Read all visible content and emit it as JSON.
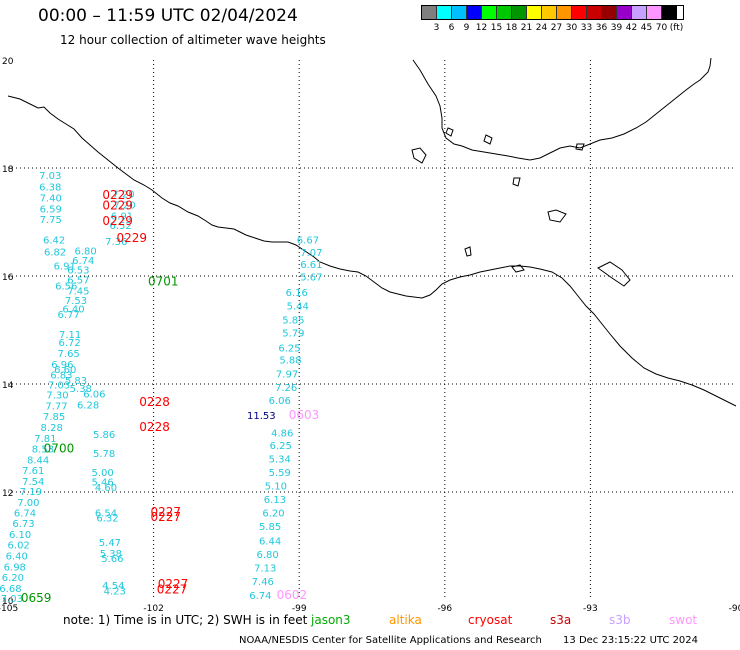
{
  "header": {
    "title": "00:00 – 11:59 UTC 02/04/2024",
    "subtitle": "12 hour collection of altimeter wave heights"
  },
  "legend": {
    "colors": [
      "#7f7f7f",
      "#00ffff",
      "#00bfff",
      "#0000ff",
      "#00ff00",
      "#00c800",
      "#009600",
      "#ffff00",
      "#ffc800",
      "#ff9600",
      "#ff0000",
      "#c80000",
      "#960000",
      "#9600c8",
      "#c8a0ff",
      "#ff96ff",
      "#000000"
    ],
    "labels": [
      "3",
      "6",
      "9",
      "12",
      "15",
      "18",
      "21",
      "24",
      "27",
      "30",
      "33",
      "36",
      "39",
      "42",
      "45",
      "70",
      "(ft)"
    ]
  },
  "map": {
    "lat_labels": [
      "20",
      "18",
      "16",
      "14",
      "12",
      "10"
    ],
    "lon_labels": [
      "-105",
      "-102",
      "-99",
      "-96",
      "-93",
      "-90"
    ],
    "points": [
      {
        "t": "7.03",
        "c": "cyan",
        "lon": -104.13,
        "lat": 17.8
      },
      {
        "t": "6.38",
        "c": "cyan",
        "lon": -104.13,
        "lat": 17.58
      },
      {
        "t": "7.40",
        "c": "cyan",
        "lon": -104.12,
        "lat": 17.38
      },
      {
        "t": "6.59",
        "c": "cyan",
        "lon": -104.12,
        "lat": 17.18
      },
      {
        "t": "7.75",
        "c": "cyan",
        "lon": -104.12,
        "lat": 16.98
      },
      {
        "t": "6.42",
        "c": "cyan",
        "lon": -104.05,
        "lat": 16.6
      },
      {
        "t": "6.82",
        "c": "cyan",
        "lon": -104.03,
        "lat": 16.38
      },
      {
        "t": "6.91",
        "c": "cyan",
        "lon": -103.83,
        "lat": 16.12
      },
      {
        "t": "6.56",
        "c": "cyan",
        "lon": -103.8,
        "lat": 15.75
      },
      {
        "t": "6.77",
        "c": "cyan",
        "lon": -103.75,
        "lat": 15.22
      },
      {
        "t": "7.11",
        "c": "cyan",
        "lon": -103.72,
        "lat": 14.85
      },
      {
        "t": "6.72",
        "c": "cyan",
        "lon": -103.73,
        "lat": 14.7
      },
      {
        "t": "7.65",
        "c": "cyan",
        "lon": -103.75,
        "lat": 14.5
      },
      {
        "t": "6.96",
        "c": "cyan",
        "lon": -103.88,
        "lat": 14.3
      },
      {
        "t": "6.83",
        "c": "cyan",
        "lon": -103.9,
        "lat": 14.1
      },
      {
        "t": "7.03",
        "c": "cyan",
        "lon": -103.95,
        "lat": 13.92
      },
      {
        "t": "7.30",
        "c": "cyan",
        "lon": -103.98,
        "lat": 13.73
      },
      {
        "t": "7.77",
        "c": "cyan",
        "lon": -104.0,
        "lat": 13.53
      },
      {
        "t": "7.85",
        "c": "cyan",
        "lon": -104.05,
        "lat": 13.33
      },
      {
        "t": "8.28",
        "c": "cyan",
        "lon": -104.1,
        "lat": 13.13
      },
      {
        "t": "7.81",
        "c": "cyan",
        "lon": -104.23,
        "lat": 12.93
      },
      {
        "t": "8.53",
        "c": "cyan",
        "lon": -104.28,
        "lat": 12.73
      },
      {
        "t": "8.44",
        "c": "cyan",
        "lon": -104.38,
        "lat": 12.53
      },
      {
        "t": "7.61",
        "c": "cyan",
        "lon": -104.48,
        "lat": 12.33
      },
      {
        "t": "7.54",
        "c": "cyan",
        "lon": -104.48,
        "lat": 12.13
      },
      {
        "t": "7.19",
        "c": "cyan",
        "lon": -104.53,
        "lat": 11.94
      },
      {
        "t": "7.00",
        "c": "cyan",
        "lon": -104.58,
        "lat": 11.74
      },
      {
        "t": "6.74",
        "c": "cyan",
        "lon": -104.65,
        "lat": 11.55
      },
      {
        "t": "6.73",
        "c": "cyan",
        "lon": -104.68,
        "lat": 11.35
      },
      {
        "t": "6.10",
        "c": "cyan",
        "lon": -104.75,
        "lat": 11.15
      },
      {
        "t": "6.02",
        "c": "cyan",
        "lon": -104.78,
        "lat": 10.95
      },
      {
        "t": "6.40",
        "c": "cyan",
        "lon": -104.82,
        "lat": 10.75
      },
      {
        "t": "6.98",
        "c": "cyan",
        "lon": -104.86,
        "lat": 10.55
      },
      {
        "t": "6.20",
        "c": "cyan",
        "lon": -104.9,
        "lat": 10.35
      },
      {
        "t": "6.68",
        "c": "cyan",
        "lon": -104.95,
        "lat": 10.15
      },
      {
        "t": "7.03",
        "c": "cyan",
        "lon": -104.92,
        "lat": 9.96
      },
      {
        "t": "6.80",
        "c": "cyan",
        "lon": -103.4,
        "lat": 16.4
      },
      {
        "t": "6.74",
        "c": "cyan",
        "lon": -103.45,
        "lat": 16.22
      },
      {
        "t": "6.53",
        "c": "cyan",
        "lon": -103.55,
        "lat": 16.05
      },
      {
        "t": "6.57",
        "c": "cyan",
        "lon": -103.55,
        "lat": 15.86
      },
      {
        "t": "7.45",
        "c": "cyan",
        "lon": -103.55,
        "lat": 15.66
      },
      {
        "t": "7.53",
        "c": "cyan",
        "lon": -103.6,
        "lat": 15.48
      },
      {
        "t": "6.40",
        "c": "cyan",
        "lon": -103.65,
        "lat": 15.32
      },
      {
        "t": "6.06",
        "c": "cyan",
        "lon": -103.22,
        "lat": 13.75
      },
      {
        "t": "6.28",
        "c": "cyan",
        "lon": -103.35,
        "lat": 13.55
      },
      {
        "t": "5.86",
        "c": "cyan",
        "lon": -103.02,
        "lat": 13.0
      },
      {
        "t": "5.78",
        "c": "cyan",
        "lon": -103.02,
        "lat": 12.65
      },
      {
        "t": "5.00",
        "c": "cyan",
        "lon": -103.05,
        "lat": 12.3
      },
      {
        "t": "5.46",
        "c": "cyan",
        "lon": -103.05,
        "lat": 12.12
      },
      {
        "t": "4.60",
        "c": "cyan",
        "lon": -102.98,
        "lat": 12.02
      },
      {
        "t": "6.54",
        "c": "cyan",
        "lon": -102.98,
        "lat": 11.55
      },
      {
        "t": "6.32",
        "c": "cyan",
        "lon": -102.95,
        "lat": 11.45
      },
      {
        "t": "5.47",
        "c": "cyan",
        "lon": -102.9,
        "lat": 11.0
      },
      {
        "t": "5.38",
        "c": "cyan",
        "lon": -102.88,
        "lat": 10.8
      },
      {
        "t": "5.66",
        "c": "cyan",
        "lon": -102.85,
        "lat": 10.7
      },
      {
        "t": "4.54",
        "c": "cyan",
        "lon": -102.83,
        "lat": 10.2
      },
      {
        "t": "4.23",
        "c": "cyan",
        "lon": -102.8,
        "lat": 10.1
      },
      {
        "t": "6.60",
        "c": "cyan",
        "lon": -103.82,
        "lat": 14.2
      },
      {
        "t": "5.83",
        "c": "cyan",
        "lon": -103.6,
        "lat": 14.0
      },
      {
        "t": "5.38",
        "c": "cyan",
        "lon": -103.5,
        "lat": 13.85
      },
      {
        "t": "7.20",
        "c": "cyan",
        "lon": -102.62,
        "lat": 17.45
      },
      {
        "t": "7.20",
        "c": "cyan",
        "lon": -102.6,
        "lat": 17.25
      },
      {
        "t": "6.91",
        "c": "cyan",
        "lon": -102.65,
        "lat": 17.05
      },
      {
        "t": "6.52",
        "c": "cyan",
        "lon": -102.68,
        "lat": 16.87
      },
      {
        "t": "7.36",
        "c": "cyan",
        "lon": -102.77,
        "lat": 16.57
      },
      {
        "t": "6.67",
        "c": "cyan",
        "lon": -98.82,
        "lat": 16.6
      },
      {
        "t": "7.07",
        "c": "cyan",
        "lon": -98.75,
        "lat": 16.37
      },
      {
        "t": "6.61",
        "c": "cyan",
        "lon": -98.75,
        "lat": 16.15
      },
      {
        "t": "5.67",
        "c": "cyan",
        "lon": -98.75,
        "lat": 15.92
      },
      {
        "t": "6.16",
        "c": "cyan",
        "lon": -99.05,
        "lat": 15.63
      },
      {
        "t": "5.44",
        "c": "cyan",
        "lon": -99.03,
        "lat": 15.38
      },
      {
        "t": "5.85",
        "c": "cyan",
        "lon": -99.12,
        "lat": 15.12
      },
      {
        "t": "5.79",
        "c": "cyan",
        "lon": -99.12,
        "lat": 14.88
      },
      {
        "t": "6.25",
        "c": "cyan",
        "lon": -99.2,
        "lat": 14.6
      },
      {
        "t": "5.88",
        "c": "cyan",
        "lon": -99.18,
        "lat": 14.38
      },
      {
        "t": "7.97",
        "c": "cyan",
        "lon": -99.25,
        "lat": 14.12
      },
      {
        "t": "7.26",
        "c": "cyan",
        "lon": -99.27,
        "lat": 13.87
      },
      {
        "t": "6.06",
        "c": "cyan",
        "lon": -99.4,
        "lat": 13.63
      },
      {
        "t": "4.86",
        "c": "cyan",
        "lon": -99.35,
        "lat": 13.03
      },
      {
        "t": "6.25",
        "c": "cyan",
        "lon": -99.38,
        "lat": 12.8
      },
      {
        "t": "5.34",
        "c": "cyan",
        "lon": -99.4,
        "lat": 12.55
      },
      {
        "t": "5.59",
        "c": "cyan",
        "lon": -99.4,
        "lat": 12.3
      },
      {
        "t": "5.10",
        "c": "cyan",
        "lon": -99.48,
        "lat": 12.05
      },
      {
        "t": "6.13",
        "c": "cyan",
        "lon": -99.5,
        "lat": 11.8
      },
      {
        "t": "6.20",
        "c": "cyan",
        "lon": -99.53,
        "lat": 11.55
      },
      {
        "t": "5.85",
        "c": "cyan",
        "lon": -99.6,
        "lat": 11.3
      },
      {
        "t": "6.44",
        "c": "cyan",
        "lon": -99.6,
        "lat": 11.03
      },
      {
        "t": "6.80",
        "c": "cyan",
        "lon": -99.65,
        "lat": 10.78
      },
      {
        "t": "7.13",
        "c": "cyan",
        "lon": -99.7,
        "lat": 10.53
      },
      {
        "t": "7.46",
        "c": "cyan",
        "lon": -99.75,
        "lat": 10.28
      },
      {
        "t": "6.74",
        "c": "cyan",
        "lon": -99.8,
        "lat": 10.02
      },
      {
        "t": "11.53",
        "c": "navy",
        "lon": -99.78,
        "lat": 13.35
      },
      {
        "t": "0603",
        "c": "pink",
        "lon": -98.9,
        "lat": 13.35
      },
      {
        "t": "0602",
        "c": "pink",
        "lon": -99.15,
        "lat": 10.02
      },
      {
        "t": "0229",
        "c": "red",
        "lon": -102.74,
        "lat": 17.43
      },
      {
        "t": "0229",
        "c": "red",
        "lon": -102.74,
        "lat": 17.23
      },
      {
        "t": "0229",
        "c": "red",
        "lon": -102.74,
        "lat": 16.94
      },
      {
        "t": "0229",
        "c": "red",
        "lon": -102.45,
        "lat": 16.63
      },
      {
        "t": "0228",
        "c": "red",
        "lon": -101.98,
        "lat": 13.59
      },
      {
        "t": "0228",
        "c": "red",
        "lon": -101.98,
        "lat": 13.13
      },
      {
        "t": "0227",
        "c": "red",
        "lon": -101.75,
        "lat": 11.56
      },
      {
        "t": "0227",
        "c": "red",
        "lon": -101.75,
        "lat": 11.46
      },
      {
        "t": "0227",
        "c": "red",
        "lon": -101.6,
        "lat": 10.22
      },
      {
        "t": "0227",
        "c": "red",
        "lon": -101.62,
        "lat": 10.12
      },
      {
        "t": "0701",
        "c": "green",
        "lon": -101.8,
        "lat": 15.82
      },
      {
        "t": "0700",
        "c": "green",
        "lon": -103.95,
        "lat": 12.73
      },
      {
        "t": "0659",
        "c": "green",
        "lon": -104.42,
        "lat": 9.96
      }
    ]
  },
  "notes": {
    "text": "note:  1) Time is in UTC;  2) SWH is in feet",
    "missions": [
      {
        "name": "jason3",
        "color": "#00aa00"
      },
      {
        "name": "altika",
        "color": "#ff9600"
      },
      {
        "name": "cryosat",
        "color": "#ff0000"
      },
      {
        "name": "s3a",
        "color": "#c80000"
      },
      {
        "name": "s3b",
        "color": "#c8a0ff"
      },
      {
        "name": "swot",
        "color": "#ff96ff"
      }
    ]
  },
  "footer": {
    "credit": "NOAA/NESDIS Center for Satellite Applications and Research",
    "timestamp": "13 Dec 23:15:22 UTC 2024"
  }
}
